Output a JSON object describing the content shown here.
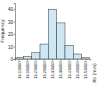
{
  "chart_data": {
    "type": "bar",
    "x_label": "Rb (mm)",
    "y_label": "Frequency",
    "categories": [
      "13.13850",
      "13.18850",
      "13.23850",
      "13.28850",
      "13.33850",
      "13.38850",
      "13.43850",
      "13.48850",
      "13.53850"
    ],
    "values": [
      1,
      2,
      5,
      12,
      40,
      29,
      11,
      4,
      1
    ],
    "color": "#cde7f3",
    "ylim": [
      0,
      45
    ],
    "yticks": [
      0,
      10,
      20,
      30,
      40
    ],
    "grid": false
  }
}
